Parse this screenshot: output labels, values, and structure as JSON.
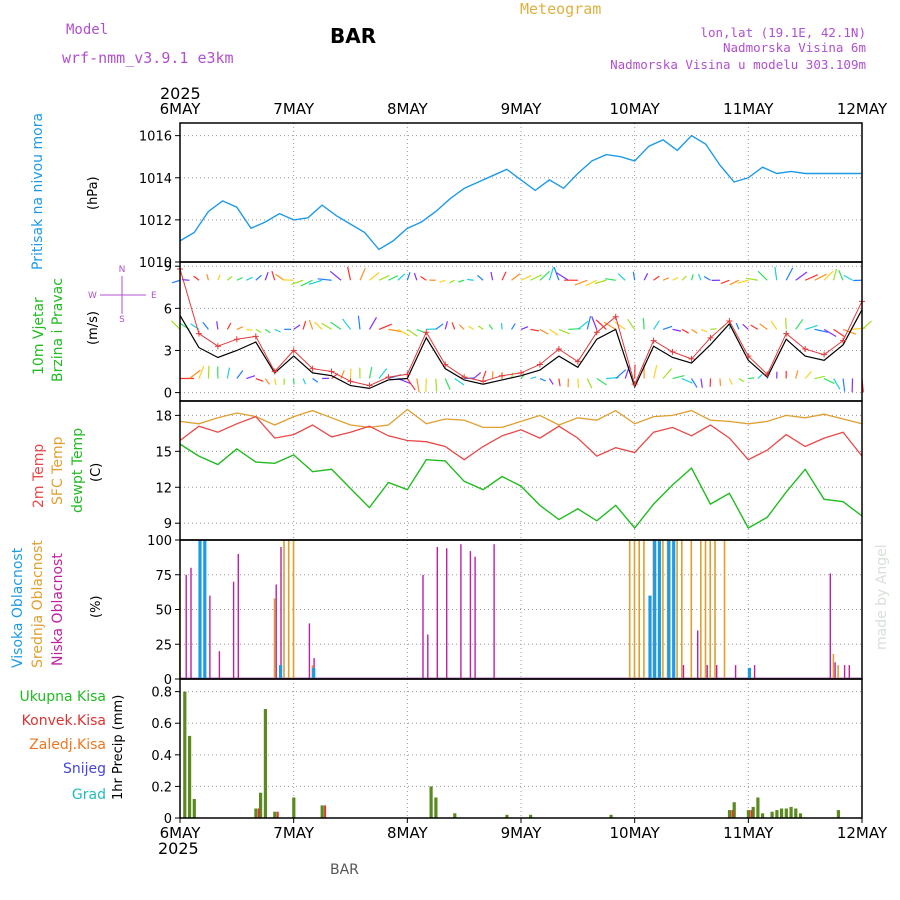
{
  "header": {
    "meteogram_label": "Meteogram",
    "model_label": "Model",
    "model_name": "wrf-nmm_v3.9.1 e3km",
    "station": "BAR",
    "lonlat": "lon,lat (19.1E, 42.1N)",
    "elevation": "Nadmorska Visina 6m",
    "model_elevation": "Nadmorska Visina u modelu 303.109m",
    "footer_station": "BAR",
    "watermark": "made by Angel"
  },
  "axis_time": {
    "year_top": "2025",
    "year_bottom": "2025",
    "days": [
      "6MAY",
      "7MAY",
      "8MAY",
      "9MAY",
      "10MAY",
      "11MAY",
      "12MAY"
    ]
  },
  "colors": {
    "pressure": "#1e9be6",
    "wind_speed_line": "#000000",
    "wind_gust": "#e03a3a",
    "temp_2m": "#e84848",
    "temp_sfc": "#e0a030",
    "dewpoint": "#22bb22",
    "cloud_high": "#1e9be6",
    "cloud_mid": "#e0a030",
    "cloud_low": "#c020a0",
    "precip_total": "#33aa33",
    "precip_conv": "#dd3333",
    "precip_freezing": "#ee7722",
    "snow": "#4444dd",
    "hail": "#22bbbb",
    "label_purple": "#b050d0",
    "label_orange": "#e0b040"
  },
  "chart_data": [
    {
      "type": "line",
      "id": "pressure",
      "ylabel_1": "Pritisak na nivou mora",
      "ylabel_2": "(hPa)",
      "ylim": [
        1010,
        1016.6
      ],
      "yticks": [
        1010,
        1012,
        1014,
        1016
      ],
      "x_hours": [
        0,
        3,
        6,
        9,
        12,
        15,
        18,
        21,
        24,
        27,
        30,
        33,
        36,
        39,
        42,
        45,
        48,
        51,
        54,
        57,
        60,
        63,
        66,
        69,
        72,
        75,
        78,
        81,
        84,
        87,
        90,
        93,
        96,
        99,
        102,
        105,
        108,
        111,
        114,
        117,
        120,
        123,
        126,
        129,
        132,
        135,
        138,
        141,
        144
      ],
      "values": [
        1011.0,
        1011.4,
        1012.4,
        1012.9,
        1012.6,
        1011.6,
        1011.9,
        1012.3,
        1012.0,
        1012.1,
        1012.7,
        1012.2,
        1011.8,
        1011.4,
        1010.6,
        1011.0,
        1011.6,
        1011.9,
        1012.4,
        1013.0,
        1013.5,
        1013.8,
        1014.1,
        1014.4,
        1013.9,
        1013.4,
        1013.9,
        1013.5,
        1014.2,
        1014.8,
        1015.1,
        1015.0,
        1014.8,
        1015.5,
        1015.8,
        1015.3,
        1016.0,
        1015.6,
        1014.6,
        1013.8,
        1014.0,
        1014.5,
        1014.2,
        1014.3,
        1014.2,
        1014.2,
        1014.2,
        1014.2,
        1014.2
      ]
    },
    {
      "type": "line",
      "id": "wind",
      "ylabel_1": "10m Vjetar",
      "ylabel_2": "Brzina i Pravac",
      "ylabel_3": "(m/s)",
      "compass": [
        "N",
        "S",
        "W",
        "E"
      ],
      "ylim": [
        -0.6,
        9.3
      ],
      "yticks": [
        0,
        3,
        6,
        9
      ],
      "x_hours": [
        0,
        4,
        8,
        12,
        16,
        20,
        24,
        28,
        32,
        36,
        40,
        44,
        48,
        52,
        56,
        60,
        64,
        68,
        72,
        76,
        80,
        84,
        88,
        92,
        96,
        100,
        104,
        108,
        112,
        116,
        120,
        124,
        128,
        132,
        136,
        140,
        144
      ],
      "speed": [
        5.5,
        3.2,
        2.5,
        3.0,
        3.6,
        1.4,
        2.6,
        1.4,
        1.2,
        0.5,
        0.3,
        0.9,
        1.0,
        3.9,
        1.7,
        0.9,
        0.6,
        0.9,
        1.2,
        1.6,
        2.6,
        1.8,
        3.8,
        4.5,
        0.4,
        3.3,
        2.5,
        2.1,
        3.4,
        4.9,
        2.3,
        1.1,
        3.8,
        2.6,
        2.3,
        3.4,
        5.9
      ],
      "gust": [
        8.8,
        4.2,
        3.3,
        3.8,
        4.0,
        1.5,
        3.0,
        1.7,
        1.5,
        0.8,
        0.5,
        1.1,
        1.3,
        4.3,
        2.0,
        1.1,
        0.8,
        1.2,
        1.4,
        2.0,
        3.1,
        2.2,
        4.3,
        5.4,
        0.6,
        3.7,
        2.9,
        2.4,
        3.9,
        5.1,
        2.6,
        1.3,
        4.2,
        3.1,
        2.7,
        3.7,
        6.5
      ]
    },
    {
      "type": "line",
      "id": "temperature",
      "ylabel_1": "2m Temp",
      "ylabel_2": "SFC Temp",
      "ylabel_3": "dewpt Temp",
      "ylabel_4": "(C)",
      "ylim": [
        7.6,
        19.2
      ],
      "yticks": [
        9,
        12,
        15,
        18
      ],
      "x_hours": [
        0,
        4,
        8,
        12,
        16,
        20,
        24,
        28,
        32,
        36,
        40,
        44,
        48,
        52,
        56,
        60,
        64,
        68,
        72,
        76,
        80,
        84,
        88,
        92,
        96,
        100,
        104,
        108,
        112,
        116,
        120,
        124,
        128,
        132,
        136,
        140,
        144
      ],
      "t2m": [
        15.9,
        17.1,
        16.6,
        17.3,
        17.9,
        16.1,
        16.4,
        17.2,
        16.2,
        16.6,
        17.1,
        16.3,
        15.9,
        15.8,
        15.4,
        14.3,
        15.4,
        16.3,
        16.8,
        16.1,
        17.1,
        16.1,
        14.6,
        15.3,
        14.9,
        16.6,
        17.0,
        16.3,
        17.2,
        16.1,
        14.3,
        15.1,
        16.4,
        15.4,
        16.1,
        16.6,
        14.6
      ],
      "sfc": [
        17.5,
        17.3,
        17.8,
        18.2,
        17.9,
        17.2,
        17.9,
        18.4,
        17.8,
        17.2,
        17.0,
        17.2,
        18.5,
        17.3,
        17.7,
        17.6,
        17.0,
        17.0,
        17.5,
        18.0,
        17.2,
        17.8,
        17.6,
        18.4,
        17.3,
        17.9,
        18.0,
        18.4,
        17.6,
        17.5,
        17.3,
        17.5,
        18.0,
        17.8,
        18.1,
        17.7,
        17.3
      ],
      "dewpt": [
        15.6,
        14.6,
        13.9,
        15.2,
        14.1,
        14.0,
        14.7,
        13.3,
        13.5,
        11.9,
        10.3,
        12.4,
        11.8,
        14.3,
        14.2,
        12.5,
        11.8,
        12.9,
        12.1,
        10.5,
        9.3,
        10.2,
        9.2,
        10.5,
        8.6,
        10.6,
        12.2,
        13.6,
        10.6,
        11.5,
        8.6,
        9.5,
        11.6,
        13.5,
        11.0,
        10.8,
        9.6
      ]
    },
    {
      "type": "bar",
      "id": "clouds",
      "ylabel_1": "Visoka Oblacnost",
      "ylabel_2": "Srednja Oblacnost",
      "ylabel_3": "Niska Oblacnost",
      "ylabel_4": "(%)",
      "ylim": [
        0,
        100
      ],
      "yticks": [
        0,
        25,
        50,
        75,
        100
      ],
      "low": [
        [
          1,
          75
        ],
        [
          2,
          80
        ],
        [
          6,
          60
        ],
        [
          8,
          20
        ],
        [
          11,
          70
        ],
        [
          12,
          90
        ],
        [
          20,
          68
        ],
        [
          21,
          95
        ],
        [
          27,
          40
        ],
        [
          28,
          15
        ],
        [
          51,
          75
        ],
        [
          52,
          32
        ],
        [
          54,
          95
        ],
        [
          56,
          94
        ],
        [
          59,
          97
        ],
        [
          61,
          92
        ],
        [
          62,
          88
        ],
        [
          66,
          97
        ],
        [
          104,
          10
        ],
        [
          106,
          10
        ],
        [
          109,
          35
        ],
        [
          111,
          10
        ],
        [
          113,
          10
        ],
        [
          117,
          10
        ],
        [
          121,
          10
        ],
        [
          137,
          76
        ],
        [
          138,
          12
        ],
        [
          140,
          10
        ],
        [
          141,
          10
        ]
      ],
      "mid": [
        [
          0,
          72
        ],
        [
          20,
          58
        ],
        [
          22,
          100
        ],
        [
          23,
          100
        ],
        [
          24,
          100
        ],
        [
          28,
          10
        ],
        [
          95,
          100
        ],
        [
          96,
          100
        ],
        [
          97,
          100
        ],
        [
          98,
          100
        ],
        [
          100,
          100
        ],
        [
          102,
          100
        ],
        [
          103,
          100
        ],
        [
          105,
          100
        ],
        [
          106,
          100
        ],
        [
          108,
          100
        ],
        [
          110,
          100
        ],
        [
          111,
          100
        ],
        [
          112,
          100
        ],
        [
          113,
          100
        ],
        [
          115,
          100
        ],
        [
          138,
          18
        ],
        [
          139,
          10
        ]
      ],
      "high": [
        [
          4,
          100
        ],
        [
          5,
          100
        ],
        [
          21,
          10
        ],
        [
          28,
          8
        ],
        [
          99,
          60
        ],
        [
          100,
          100
        ],
        [
          101,
          100
        ],
        [
          103,
          100
        ],
        [
          104,
          100
        ],
        [
          120,
          8
        ]
      ]
    },
    {
      "type": "bar",
      "id": "precip",
      "ylabel_1": "Ukupna Kisa",
      "ylabel_2": "Konvek.Kisa",
      "ylabel_3": "Zaledj.Kisa",
      "ylabel_4": "Snijeg",
      "ylabel_5": "Grad",
      "ylabel_6": "1hr Precip (mm)",
      "ylim": [
        0,
        0.88
      ],
      "yticks": [
        0,
        0.2,
        0.4,
        0.6,
        0.8
      ],
      "total": [
        [
          1,
          0.8
        ],
        [
          2,
          0.52
        ],
        [
          3,
          0.12
        ],
        [
          16,
          0.06
        ],
        [
          17,
          0.16
        ],
        [
          18,
          0.69
        ],
        [
          20,
          0.04
        ],
        [
          24,
          0.13
        ],
        [
          30,
          0.08
        ],
        [
          53,
          0.2
        ],
        [
          54,
          0.13
        ],
        [
          58,
          0.03
        ],
        [
          69,
          0.02
        ],
        [
          74,
          0.02
        ],
        [
          91,
          0.02
        ],
        [
          116,
          0.05
        ],
        [
          117,
          0.1
        ],
        [
          120,
          0.05
        ],
        [
          121,
          0.07
        ],
        [
          122,
          0.13
        ],
        [
          123,
          0.03
        ],
        [
          125,
          0.04
        ],
        [
          126,
          0.05
        ],
        [
          127,
          0.06
        ],
        [
          128,
          0.06
        ],
        [
          129,
          0.07
        ],
        [
          130,
          0.06
        ],
        [
          131,
          0.03
        ],
        [
          139,
          0.05
        ]
      ],
      "conv": [
        [
          1,
          0.8
        ],
        [
          2,
          0.52
        ],
        [
          3,
          0.12
        ],
        [
          16,
          0.06
        ],
        [
          17,
          0.16
        ],
        [
          18,
          0.69
        ],
        [
          20,
          0.04
        ],
        [
          24,
          0.13
        ],
        [
          30,
          0.08
        ],
        [
          53,
          0.2
        ],
        [
          54,
          0.13
        ],
        [
          116,
          0.05
        ],
        [
          120,
          0.05
        ]
      ]
    }
  ]
}
